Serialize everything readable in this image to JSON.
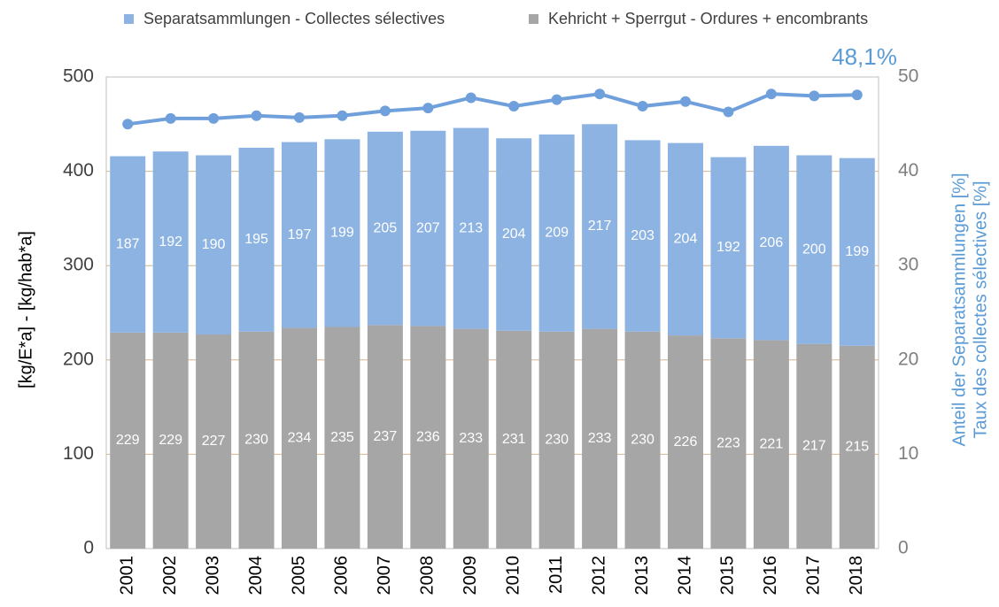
{
  "chart_data": {
    "type": "stacked_bar_line",
    "categories": [
      "2001",
      "2002",
      "2003",
      "2004",
      "2005",
      "2006",
      "2007",
      "2008",
      "2009",
      "2010",
      "2011",
      "2012",
      "2013",
      "2014",
      "2015",
      "2016",
      "2017",
      "2018"
    ],
    "series": [
      {
        "name": "Kehricht + Sperrgut - Ordures + encombrants",
        "color": "#a6a6a6",
        "type": "bar",
        "values": [
          229,
          229,
          227,
          230,
          234,
          235,
          237,
          236,
          233,
          231,
          230,
          233,
          230,
          226,
          223,
          221,
          217,
          215
        ]
      },
      {
        "name": "Separatsammlungen - Collectes sélectives",
        "color": "#8db3e2",
        "type": "bar",
        "values": [
          187,
          192,
          190,
          195,
          197,
          199,
          205,
          207,
          213,
          204,
          209,
          217,
          203,
          204,
          192,
          206,
          200,
          199
        ]
      },
      {
        "color": "#6fa0dc",
        "type": "line",
        "axis": "y2",
        "values": [
          45.0,
          45.6,
          45.6,
          45.9,
          45.7,
          45.9,
          46.4,
          46.7,
          47.8,
          46.9,
          47.6,
          48.2,
          46.9,
          47.4,
          46.3,
          48.2,
          48.0,
          48.1
        ]
      }
    ],
    "legend_order": [
      1,
      0
    ],
    "ylabel": "[kg/E*a] - [kg/hab*a]",
    "y2label": [
      "Anteil der Separatsammlungen  [%]",
      "Taux des collectes sélectives [%]"
    ],
    "annotation": "48,1%",
    "ylim": [
      0,
      500
    ],
    "yticks": [
      0,
      100,
      200,
      300,
      400,
      500
    ],
    "y2lim": [
      0,
      50
    ],
    "y2ticks": [
      0,
      10,
      20,
      30,
      40,
      50
    ],
    "grid": true
  }
}
